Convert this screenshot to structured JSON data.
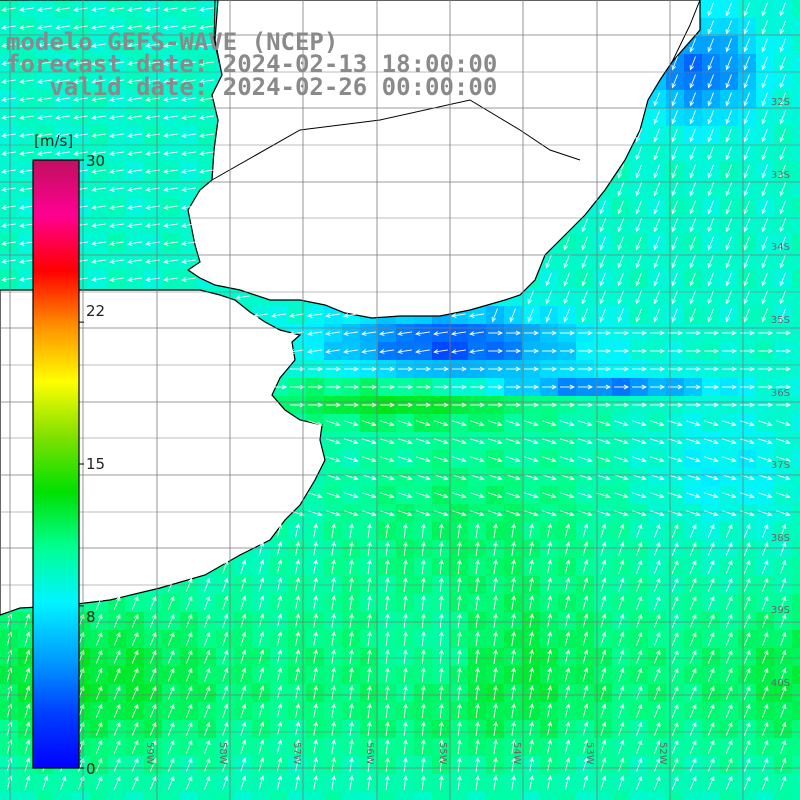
{
  "title": {
    "line1": "modelo GEFS-WAVE (NCEP)",
    "line2": "forecast date: 2024-02-13 18:00:00",
    "line3": "   valid date: 2024-02-26 00:00:00"
  },
  "colorbar": {
    "unit": "[m/s]",
    "ticks": [
      "30",
      "22",
      "15",
      "8",
      "0"
    ],
    "tick_values": [
      30,
      22,
      15,
      8,
      0
    ],
    "min": 0,
    "max": 30,
    "stops": [
      "#0000ff",
      "#0040ff",
      "#00a0ff",
      "#00f5ff",
      "#00ff90",
      "#00e000",
      "#80e000",
      "#ffff00",
      "#ff9000",
      "#ff0000",
      "#ff0090",
      "#c01060"
    ]
  },
  "map": {
    "land_color": "#ffffff",
    "coast_color": "#000000",
    "grid_color": "#7a7a7a",
    "lat_labels": [
      "32S",
      "33S",
      "34S",
      "35S",
      "36S",
      "37S",
      "38S",
      "39S",
      "40S"
    ],
    "lon_labels": [
      "60W",
      "59W",
      "58W",
      "57W",
      "56W",
      "55W",
      "54W",
      "53W",
      "52W"
    ]
  }
}
